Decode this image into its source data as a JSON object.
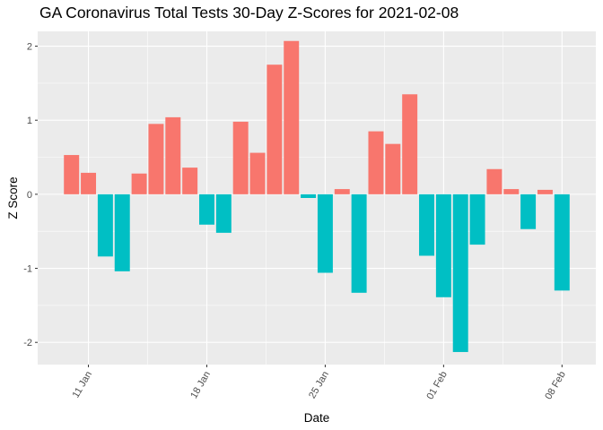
{
  "chart_data": {
    "type": "bar",
    "title": "GA Coronavirus Total Tests 30-Day Z-Scores for 2021-02-08",
    "xlabel": "Date",
    "ylabel": "Z Score",
    "ylim": [
      -2.3,
      2.2
    ],
    "y_ticks": [
      -2,
      -1,
      0,
      1,
      2
    ],
    "y_tick_labels": [
      "-2",
      "-1",
      "0",
      "1",
      "2"
    ],
    "x_ticks": [
      "2021-01-11",
      "2021-01-18",
      "2021-01-25",
      "2021-02-01",
      "2021-02-08"
    ],
    "x_tick_labels": [
      "11 Jan",
      "18 Jan",
      "25 Jan",
      "01 Feb",
      "08 Feb"
    ],
    "x_range": [
      "2021-01-08",
      "2021-02-10"
    ],
    "grid": true,
    "legend": "none",
    "colors": {
      "positive": "#F8766D",
      "negative": "#00BFC4",
      "panel": "#EBEBEB",
      "grid": "#FFFFFF"
    },
    "dates": [
      "2021-01-10",
      "2021-01-11",
      "2021-01-12",
      "2021-01-13",
      "2021-01-14",
      "2021-01-15",
      "2021-01-16",
      "2021-01-17",
      "2021-01-18",
      "2021-01-19",
      "2021-01-20",
      "2021-01-21",
      "2021-01-22",
      "2021-01-23",
      "2021-01-24",
      "2021-01-25",
      "2021-01-26",
      "2021-01-27",
      "2021-01-28",
      "2021-01-29",
      "2021-01-30",
      "2021-01-31",
      "2021-02-01",
      "2021-02-02",
      "2021-02-03",
      "2021-02-04",
      "2021-02-05",
      "2021-02-06",
      "2021-02-07",
      "2021-02-08"
    ],
    "values": [
      0.53,
      0.29,
      -0.84,
      -1.04,
      0.28,
      0.95,
      1.04,
      0.36,
      -0.41,
      -0.52,
      0.98,
      0.56,
      1.75,
      2.07,
      -0.05,
      -1.06,
      0.07,
      -1.33,
      0.85,
      0.68,
      1.35,
      -0.83,
      -1.39,
      -2.13,
      -0.68,
      0.34,
      0.07,
      -0.47,
      0.06,
      -1.3
    ]
  }
}
